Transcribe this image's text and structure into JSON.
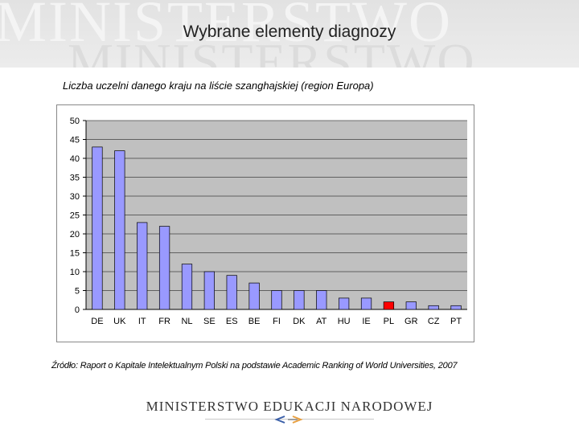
{
  "header": {
    "watermark": "MINISTERSTWO",
    "title": "Wybrane elementy diagnozy"
  },
  "chart_data": {
    "type": "bar",
    "title": "Liczba uczelni danego kraju na liście szanghajskiej (region Europa)",
    "xlabel": "",
    "ylabel": "",
    "categories": [
      "DE",
      "UK",
      "IT",
      "FR",
      "NL",
      "SE",
      "ES",
      "BE",
      "FI",
      "DK",
      "AT",
      "HU",
      "IE",
      "PL",
      "GR",
      "CZ",
      "PT"
    ],
    "values": [
      43,
      42,
      23,
      22,
      12,
      10,
      9,
      7,
      5,
      5,
      5,
      3,
      3,
      2,
      2,
      1,
      1
    ],
    "ylim": [
      0,
      50
    ],
    "yticks": [
      0,
      5,
      10,
      15,
      20,
      25,
      30,
      35,
      40,
      45,
      50
    ],
    "grid": true,
    "legend": "none",
    "colors": {
      "bar": "#9999ff",
      "highlight": "#ff0000",
      "highlight_category": "PL",
      "plot_background": "#c0c0c0",
      "gridline": "#000000"
    }
  },
  "source": "Źródło: Raport o Kapitale Intelektualnym Polski na podstawie Academic Ranking of World Universities, 2007",
  "footer": {
    "logo_text": "MINISTERSTWO EDUKACJI NARODOWEJ"
  }
}
